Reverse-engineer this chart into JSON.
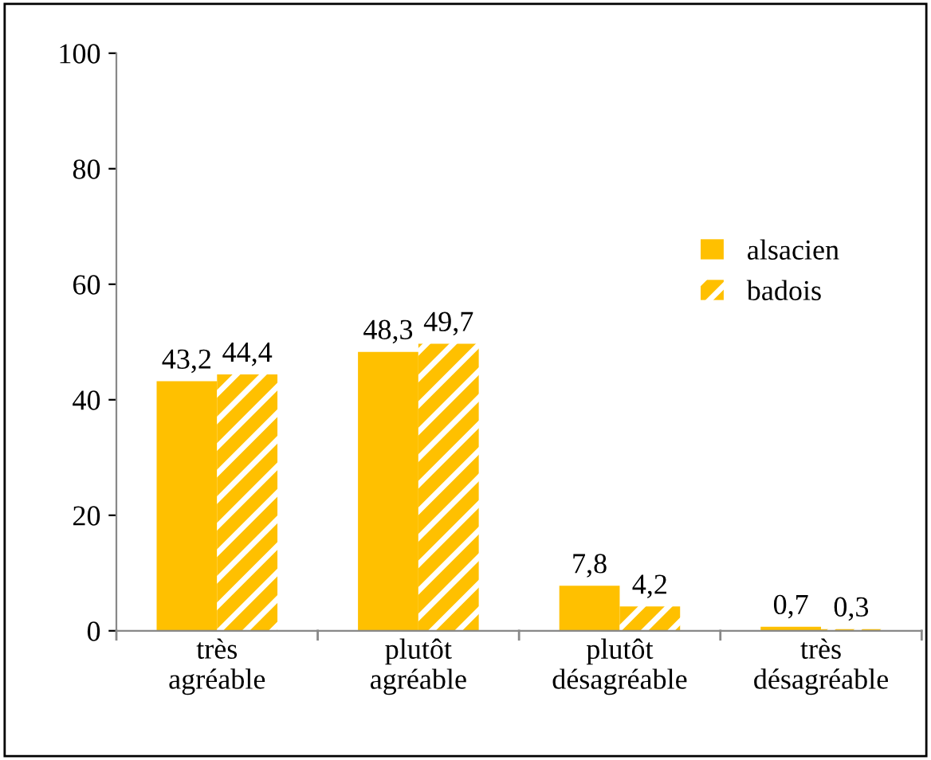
{
  "chart_data": {
    "type": "bar",
    "categories": [
      "très\nagréable",
      "plutôt\nagréable",
      "plutôt\ndésagréable",
      "très\ndésagréable"
    ],
    "series": [
      {
        "name": "alsacien",
        "color": "#ffc000",
        "values": [
          43.2,
          48.3,
          7.8,
          0.7
        ],
        "value_labels": [
          "43,2",
          "48,3",
          "7,8",
          "0,7"
        ]
      },
      {
        "name": "badois",
        "color": "#ffc000",
        "values": [
          44.4,
          49.7,
          4.2,
          0.3
        ],
        "value_labels": [
          "44,4",
          "49,7",
          "4,2",
          "0,3"
        ]
      }
    ],
    "ylim": [
      0,
      100
    ],
    "yticks": [
      0,
      20,
      40,
      60,
      80,
      100
    ],
    "grid": false,
    "legend": "right"
  }
}
